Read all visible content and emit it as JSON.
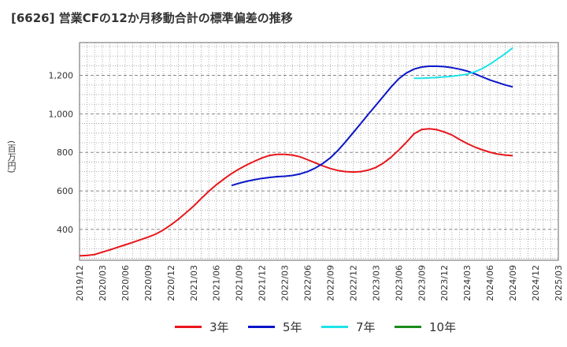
{
  "title": "[6626]  営業CFの12か月移動合計の標準偏差の推移",
  "y_unit_label": "(百万円)",
  "chart_data": {
    "type": "line",
    "title": "[6626]  営業CFの12か月移動合計の標準偏差の推移",
    "ylabel": "(百万円)",
    "xlim": [
      "2019/12",
      "2025/03"
    ],
    "ylim": [
      240,
      1370
    ],
    "yticks": [
      400,
      600,
      800,
      1000,
      1200
    ],
    "ytick_labels": [
      "400",
      "600",
      "800",
      "1,000",
      "1,200"
    ],
    "xticks": [
      "2019/12",
      "2020/03",
      "2020/06",
      "2020/09",
      "2020/12",
      "2021/03",
      "2021/06",
      "2021/09",
      "2021/12",
      "2022/03",
      "2022/06",
      "2022/09",
      "2022/12",
      "2023/03",
      "2023/06",
      "2023/09",
      "2023/12",
      "2024/03",
      "2024/06",
      "2024/09",
      "2024/12",
      "2025/03"
    ],
    "grid": true,
    "legend_position": "bottom",
    "series": [
      {
        "name": "3年",
        "color": "#e8161b",
        "x": [
          "2019/12",
          "2020/01",
          "2020/02",
          "2020/03",
          "2020/04",
          "2020/05",
          "2020/06",
          "2020/07",
          "2020/08",
          "2020/09",
          "2020/10",
          "2020/11",
          "2020/12",
          "2021/01",
          "2021/02",
          "2021/03",
          "2021/04",
          "2021/05",
          "2021/06",
          "2021/07",
          "2021/08",
          "2021/09",
          "2021/10",
          "2021/11",
          "2021/12",
          "2022/01",
          "2022/02",
          "2022/03",
          "2022/04",
          "2022/05",
          "2022/06",
          "2022/07",
          "2022/08",
          "2022/09",
          "2022/10",
          "2022/11",
          "2022/12",
          "2023/01",
          "2023/02",
          "2023/03",
          "2023/04",
          "2023/05",
          "2023/06",
          "2023/07",
          "2023/08",
          "2023/09",
          "2023/10",
          "2023/11",
          "2023/12",
          "2024/01",
          "2024/02",
          "2024/03",
          "2024/04",
          "2024/05",
          "2024/06",
          "2024/07",
          "2024/08",
          "2024/09"
        ],
        "values": [
          263,
          265,
          270,
          282,
          294,
          307,
          320,
          333,
          346,
          360,
          375,
          397,
          423,
          453,
          486,
          521,
          560,
          598,
          632,
          662,
          690,
          714,
          735,
          754,
          771,
          784,
          790,
          790,
          786,
          777,
          762,
          746,
          730,
          716,
          706,
          700,
          698,
          700,
          708,
          722,
          745,
          775,
          812,
          852,
          896,
          919,
          923,
          918,
          906,
          890,
          867,
          846,
          828,
          813,
          801,
          791,
          786,
          783
        ]
      },
      {
        "name": "5年",
        "color": "#0a15c8",
        "x": [
          "2021/08",
          "2021/09",
          "2021/10",
          "2021/11",
          "2021/12",
          "2022/01",
          "2022/02",
          "2022/03",
          "2022/04",
          "2022/05",
          "2022/06",
          "2022/07",
          "2022/08",
          "2022/09",
          "2022/10",
          "2022/11",
          "2022/12",
          "2023/01",
          "2023/02",
          "2023/03",
          "2023/04",
          "2023/05",
          "2023/06",
          "2023/07",
          "2023/08",
          "2023/09",
          "2023/10",
          "2023/11",
          "2023/12",
          "2024/01",
          "2024/02",
          "2024/03",
          "2024/04",
          "2024/05",
          "2024/06",
          "2024/07",
          "2024/08",
          "2024/09"
        ],
        "values": [
          628,
          640,
          650,
          658,
          665,
          670,
          674,
          676,
          680,
          688,
          700,
          718,
          742,
          772,
          810,
          855,
          902,
          950,
          998,
          1045,
          1092,
          1140,
          1182,
          1212,
          1232,
          1243,
          1247,
          1247,
          1245,
          1240,
          1232,
          1222,
          1208,
          1192,
          1176,
          1163,
          1150,
          1140
        ]
      },
      {
        "name": "7年",
        "color": "#1de3e8",
        "x": [
          "2023/08",
          "2023/09",
          "2023/10",
          "2023/11",
          "2023/12",
          "2024/01",
          "2024/02",
          "2024/03",
          "2024/04",
          "2024/05",
          "2024/06",
          "2024/07",
          "2024/08",
          "2024/09"
        ],
        "values": [
          1185,
          1185,
          1187,
          1189,
          1192,
          1195,
          1200,
          1206,
          1218,
          1235,
          1258,
          1285,
          1312,
          1343
        ]
      },
      {
        "name": "10年",
        "color": "#1a8c1a",
        "x": [],
        "values": []
      }
    ]
  }
}
